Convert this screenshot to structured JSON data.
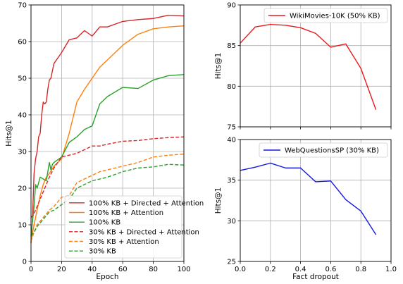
{
  "chart_data": [
    {
      "type": "line",
      "title": "",
      "xlabel": "Epoch",
      "ylabel": "Hits@1",
      "xlim": [
        0,
        100
      ],
      "ylim": [
        0,
        70
      ],
      "xticks": [
        "0",
        "20",
        "40",
        "60",
        "80",
        "100"
      ],
      "yticks": [
        "0",
        "10",
        "20",
        "30",
        "40",
        "50",
        "60",
        "70"
      ],
      "grid": true,
      "legend_position": "lower-right",
      "series": [
        {
          "name": "100% KB + Directed + Attention",
          "color": "#d62728",
          "style": "solid",
          "x": [
            0,
            1,
            2,
            3,
            4,
            5,
            6,
            7,
            8,
            9,
            10,
            11,
            12,
            13,
            15,
            20,
            25,
            30,
            35,
            40,
            45,
            50,
            60,
            70,
            80,
            90,
            100
          ],
          "y": [
            5,
            12,
            24,
            28,
            30,
            34,
            35,
            40,
            43.5,
            43,
            43.5,
            47,
            49.5,
            50,
            54,
            57,
            60.5,
            61,
            63,
            61.5,
            64,
            64,
            65.5,
            66,
            66.3,
            67.2,
            67
          ]
        },
        {
          "name": "100% KB + Attention",
          "color": "#ff7f0e",
          "style": "solid",
          "x": [
            0,
            2,
            4,
            6,
            8,
            10,
            12,
            15,
            20,
            25,
            30,
            35,
            40,
            45,
            50,
            60,
            70,
            80,
            90,
            100
          ],
          "y": [
            5.5,
            10,
            14,
            18,
            21,
            23,
            24,
            26,
            28,
            35,
            43.5,
            47,
            50,
            53,
            55,
            59,
            62,
            63.5,
            64,
            64.3
          ]
        },
        {
          "name": "100% KB",
          "color": "#2ca02c",
          "style": "solid",
          "x": [
            0,
            2,
            3,
            4,
            6,
            8,
            10,
            12,
            13,
            14,
            15,
            20,
            25,
            30,
            35,
            40,
            45,
            50,
            60,
            70,
            80,
            90,
            100
          ],
          "y": [
            7,
            15,
            21,
            20,
            23,
            22.5,
            22,
            27,
            25,
            26.5,
            27,
            28.5,
            32.5,
            34,
            36,
            37,
            43,
            45,
            47.5,
            47.2,
            49.5,
            50.7,
            51
          ]
        },
        {
          "name": "30% KB + Directed + Attention",
          "color": "#d62728",
          "style": "dashed",
          "x": [
            0,
            2,
            4,
            6,
            8,
            10,
            12,
            15,
            20,
            25,
            30,
            35,
            40,
            45,
            50,
            60,
            70,
            80,
            90,
            100
          ],
          "y": [
            12,
            13,
            15,
            17,
            19,
            21,
            23,
            25.5,
            28.5,
            29,
            29.5,
            30.5,
            31.5,
            31.5,
            32,
            32.8,
            33,
            33.5,
            33.8,
            34
          ]
        },
        {
          "name": "30% KB + Attention",
          "color": "#ff7f0e",
          "style": "dashed",
          "x": [
            0,
            2,
            4,
            6,
            8,
            10,
            12,
            15,
            20,
            25,
            30,
            35,
            40,
            45,
            50,
            60,
            70,
            80,
            90,
            100
          ],
          "y": [
            5.5,
            8,
            10,
            11,
            12,
            13,
            14,
            15,
            17.5,
            18,
            21.5,
            22.5,
            23.5,
            24.5,
            25,
            26,
            27,
            28.5,
            29,
            29.3
          ]
        },
        {
          "name": "30% KB",
          "color": "#2ca02c",
          "style": "dashed",
          "x": [
            0,
            2,
            4,
            6,
            8,
            10,
            12,
            15,
            20,
            25,
            30,
            35,
            40,
            45,
            50,
            60,
            70,
            80,
            90,
            100
          ],
          "y": [
            7,
            8,
            9.5,
            10.5,
            11.5,
            12.5,
            13.5,
            14,
            15.5,
            17,
            20,
            21,
            22,
            22.5,
            23,
            24.5,
            25.5,
            25.8,
            26.5,
            26.3
          ]
        }
      ]
    },
    {
      "type": "line",
      "title": "",
      "xlabel": "",
      "ylabel": "Hits@1",
      "xlim": [
        0,
        1
      ],
      "ylim": [
        75,
        90
      ],
      "yticks": [
        "75",
        "80",
        "85",
        "90"
      ],
      "grid": true,
      "legend_position": "top-right",
      "series": [
        {
          "name": "WikiMovies-10K (50% KB)",
          "color": "#e8191a",
          "style": "solid",
          "x": [
            0,
            0.1,
            0.2,
            0.3,
            0.4,
            0.5,
            0.6,
            0.7,
            0.8,
            0.9
          ],
          "y": [
            85.3,
            87.3,
            87.6,
            87.5,
            87.2,
            86.5,
            84.8,
            85.2,
            82.2,
            77.1
          ]
        }
      ]
    },
    {
      "type": "line",
      "title": "",
      "xlabel": "Fact dropout",
      "ylabel": "Hits@1",
      "xlim": [
        0,
        1
      ],
      "ylim": [
        25,
        40
      ],
      "xticks": [
        "0.0",
        "0.2",
        "0.4",
        "0.6",
        "0.8",
        "1.0"
      ],
      "yticks": [
        "25",
        "30",
        "35",
        "40"
      ],
      "grid": true,
      "legend_position": "top-right",
      "series": [
        {
          "name": "WebQuestionsSP (30% KB)",
          "color": "#1515e6",
          "style": "solid",
          "x": [
            0,
            0.1,
            0.2,
            0.3,
            0.4,
            0.5,
            0.6,
            0.7,
            0.8,
            0.9
          ],
          "y": [
            36.2,
            36.6,
            37.1,
            36.5,
            36.5,
            34.8,
            34.9,
            32.6,
            31.2,
            28.3
          ]
        }
      ]
    }
  ]
}
